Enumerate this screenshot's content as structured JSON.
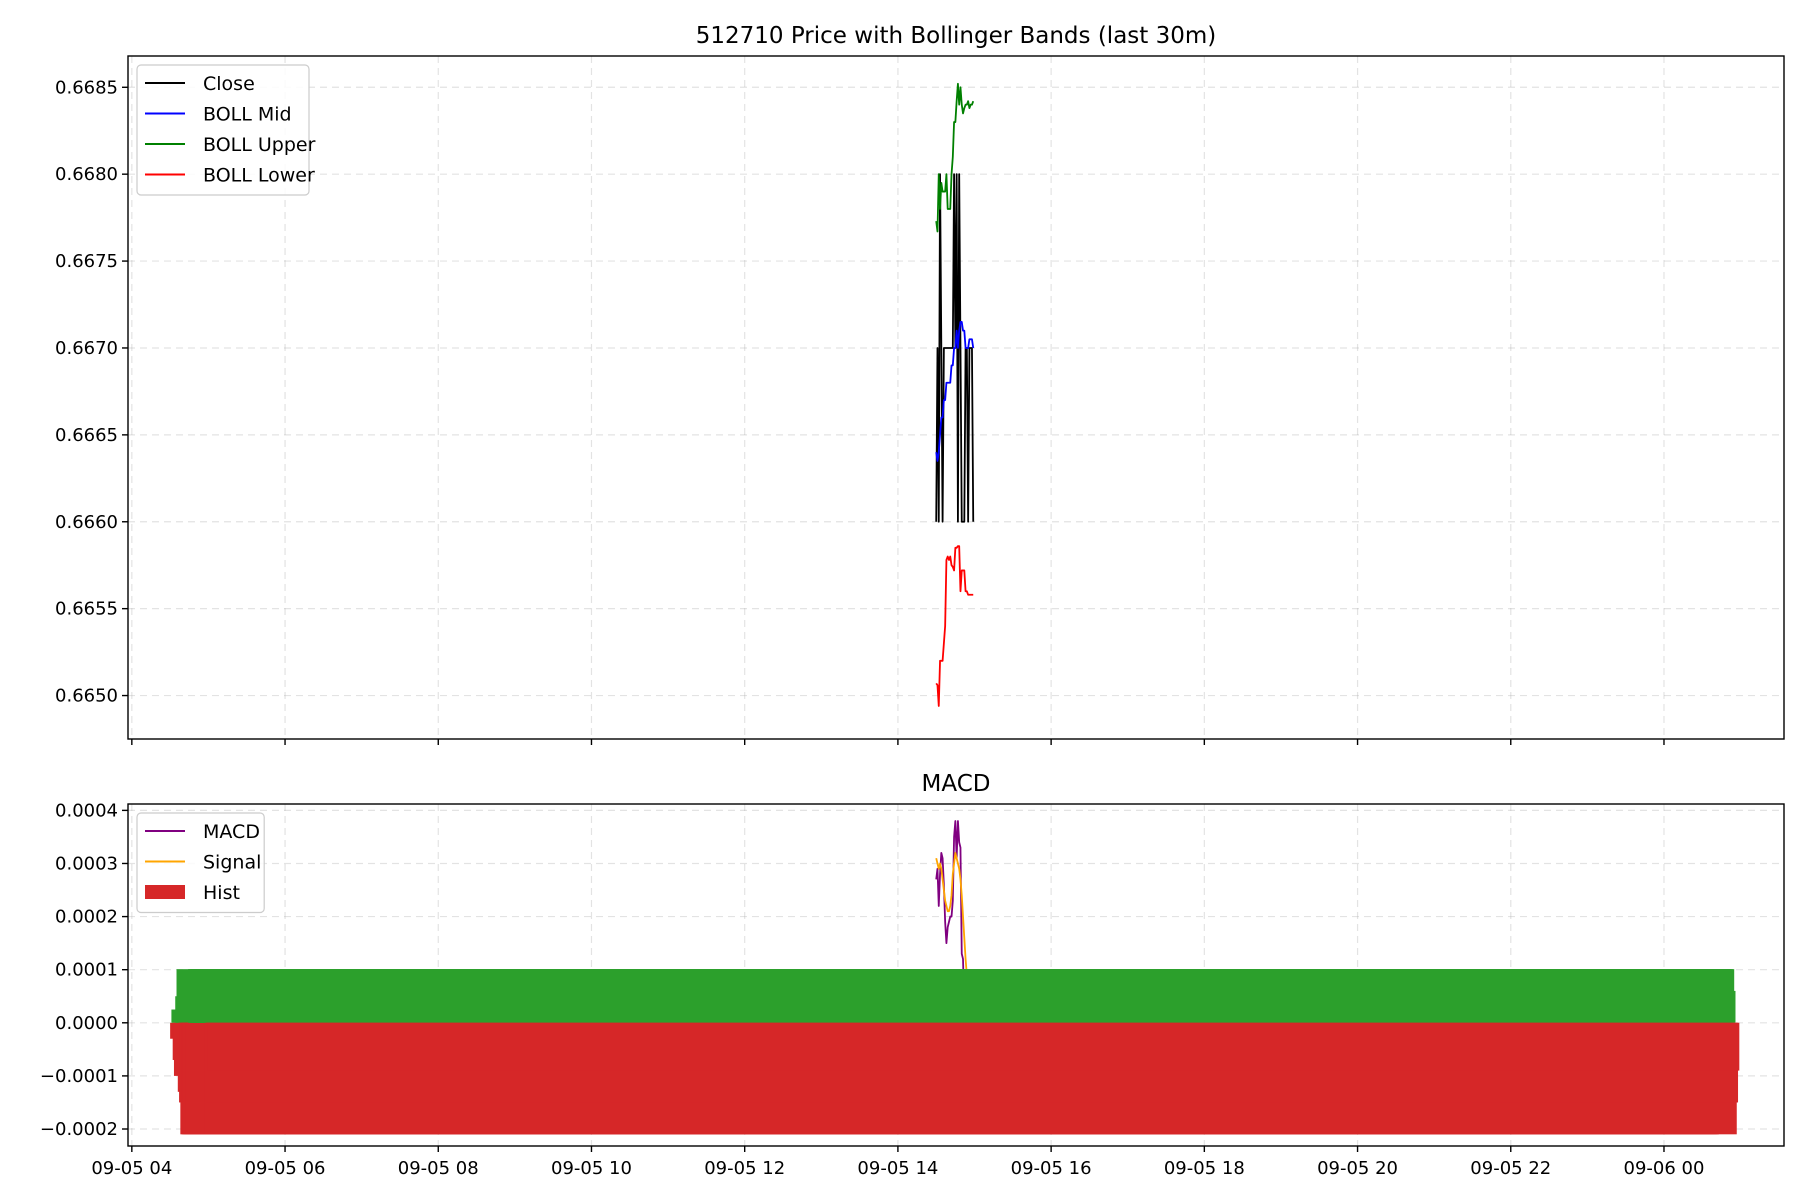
{
  "chart_data": [
    {
      "type": "line",
      "title": "512710 Price with Bollinger Bands (last 30m)",
      "xlabel": "",
      "ylabel": "",
      "x_ticks": [
        "09-05 04",
        "09-05 06",
        "09-05 08",
        "09-05 10",
        "09-05 12",
        "09-05 14",
        "09-05 16",
        "09-05 18",
        "09-05 20",
        "09-05 22",
        "09-06 00"
      ],
      "x_tick_labels_shown": false,
      "xlim": [
        "09-05 03:57",
        "09-06 01:34"
      ],
      "ylim": [
        0.66475,
        0.66868
      ],
      "y_ticks": [
        "0.6650",
        "0.6655",
        "0.6660",
        "0.6665",
        "0.6670",
        "0.6675",
        "0.6680",
        "0.6685"
      ],
      "grid": true,
      "legend_position": "upper-left",
      "legend": [
        "Close",
        "BOLL Mid",
        "BOLL Upper",
        "BOLL Lower"
      ],
      "series": [
        {
          "name": "Close",
          "color": "#000000",
          "x": [
            "09-05 14:30",
            "09-05 14:31",
            "09-05 14:32",
            "09-05 14:33",
            "09-05 14:34",
            "09-05 14:35",
            "09-05 14:36",
            "09-05 14:37",
            "09-05 14:38",
            "09-05 14:39",
            "09-05 14:40",
            "09-05 14:41",
            "09-05 14:42",
            "09-05 14:43",
            "09-05 14:44",
            "09-05 14:45",
            "09-05 14:46",
            "09-05 14:47",
            "09-05 14:48",
            "09-05 14:49",
            "09-05 14:50",
            "09-05 14:51",
            "09-05 14:52",
            "09-05 14:53",
            "09-05 14:54",
            "09-05 14:55",
            "09-05 14:56",
            "09-05 14:57",
            "09-05 14:58",
            "09-05 14:59"
          ],
          "values": [
            0.666,
            0.667,
            0.666,
            0.668,
            0.667,
            0.666,
            0.667,
            0.667,
            0.667,
            0.667,
            0.667,
            0.667,
            0.667,
            0.667,
            0.668,
            0.667,
            0.668,
            0.666,
            0.668,
            0.667,
            0.666,
            0.666,
            0.666,
            0.667,
            0.667,
            0.666,
            0.667,
            0.667,
            0.667,
            0.666
          ]
        },
        {
          "name": "BOLL Mid",
          "color": "#0000ff",
          "x": [
            "09-05 14:30",
            "09-05 14:31",
            "09-05 14:32",
            "09-05 14:33",
            "09-05 14:34",
            "09-05 14:35",
            "09-05 14:36",
            "09-05 14:37",
            "09-05 14:38",
            "09-05 14:39",
            "09-05 14:40",
            "09-05 14:41",
            "09-05 14:42",
            "09-05 14:43",
            "09-05 14:44",
            "09-05 14:45",
            "09-05 14:46",
            "09-05 14:47",
            "09-05 14:48",
            "09-05 14:49",
            "09-05 14:50",
            "09-05 14:51",
            "09-05 14:52",
            "09-05 14:53",
            "09-05 14:54",
            "09-05 14:55",
            "09-05 14:56",
            "09-05 14:57",
            "09-05 14:58",
            "09-05 14:59"
          ],
          "values": [
            0.6664,
            0.66635,
            0.6664,
            0.6665,
            0.6666,
            0.6666,
            0.6667,
            0.6667,
            0.6668,
            0.6668,
            0.6668,
            0.6668,
            0.6669,
            0.6669,
            0.667,
            0.667,
            0.6671,
            0.667,
            0.6671,
            0.66715,
            0.66715,
            0.6671,
            0.6671,
            0.667,
            0.667,
            0.667,
            0.66705,
            0.66705,
            0.66705,
            0.667
          ]
        },
        {
          "name": "BOLL Upper",
          "color": "#008000",
          "x": [
            "09-05 14:30",
            "09-05 14:31",
            "09-05 14:32",
            "09-05 14:33",
            "09-05 14:34",
            "09-05 14:35",
            "09-05 14:36",
            "09-05 14:37",
            "09-05 14:38",
            "09-05 14:39",
            "09-05 14:40",
            "09-05 14:41",
            "09-05 14:42",
            "09-05 14:43",
            "09-05 14:44",
            "09-05 14:45",
            "09-05 14:46",
            "09-05 14:47",
            "09-05 14:48",
            "09-05 14:49",
            "09-05 14:50",
            "09-05 14:51",
            "09-05 14:52",
            "09-05 14:53",
            "09-05 14:54",
            "09-05 14:55",
            "09-05 14:56",
            "09-05 14:57",
            "09-05 14:58",
            "09-05 14:59"
          ],
          "values": [
            0.66773,
            0.66767,
            0.668,
            0.6678,
            0.66795,
            0.6679,
            0.6679,
            0.6679,
            0.668,
            0.6678,
            0.6678,
            0.6678,
            0.668,
            0.6681,
            0.6683,
            0.6683,
            0.66842,
            0.66852,
            0.6684,
            0.6685,
            0.6684,
            0.66835,
            0.66838,
            0.6684,
            0.6684,
            0.66842,
            0.66838,
            0.6684,
            0.6684,
            0.66842
          ]
        },
        {
          "name": "BOLL Lower",
          "color": "#ff0000",
          "x": [
            "09-05 14:30",
            "09-05 14:31",
            "09-05 14:32",
            "09-05 14:33",
            "09-05 14:34",
            "09-05 14:35",
            "09-05 14:36",
            "09-05 14:37",
            "09-05 14:38",
            "09-05 14:39",
            "09-05 14:40",
            "09-05 14:41",
            "09-05 14:42",
            "09-05 14:43",
            "09-05 14:44",
            "09-05 14:45",
            "09-05 14:46",
            "09-05 14:47",
            "09-05 14:48",
            "09-05 14:49",
            "09-05 14:50",
            "09-05 14:51",
            "09-05 14:52",
            "09-05 14:53",
            "09-05 14:54",
            "09-05 14:55",
            "09-05 14:56",
            "09-05 14:57",
            "09-05 14:58",
            "09-05 14:59"
          ],
          "values": [
            0.66507,
            0.66506,
            0.66494,
            0.6652,
            0.6652,
            0.6652,
            0.6653,
            0.6654,
            0.66578,
            0.6658,
            0.66578,
            0.6658,
            0.66575,
            0.66574,
            0.66572,
            0.66585,
            0.66585,
            0.66586,
            0.66586,
            0.6656,
            0.66572,
            0.66572,
            0.66572,
            0.6656,
            0.6656,
            0.66558,
            0.66558,
            0.66558,
            0.66558,
            0.66558
          ]
        }
      ]
    },
    {
      "type": "line",
      "title": "MACD",
      "xlabel": "",
      "ylabel": "",
      "x_ticks": [
        "09-05 04",
        "09-05 06",
        "09-05 08",
        "09-05 10",
        "09-05 12",
        "09-05 14",
        "09-05 16",
        "09-05 18",
        "09-05 20",
        "09-05 22",
        "09-06 00"
      ],
      "xlim": [
        "09-05 03:57",
        "09-06 01:34"
      ],
      "ylim": [
        -0.000232,
        0.000412
      ],
      "y_ticks": [
        "−0.0002",
        "−0.0001",
        "0.0000",
        "0.0001",
        "0.0002",
        "0.0003",
        "0.0004"
      ],
      "grid": true,
      "legend_position": "upper-left",
      "legend": [
        "MACD",
        "Signal",
        "Hist"
      ],
      "series": [
        {
          "name": "MACD",
          "color": "#800080",
          "x": [
            "09-05 14:30",
            "09-05 14:31",
            "09-05 14:32",
            "09-05 14:33",
            "09-05 14:34",
            "09-05 14:35",
            "09-05 14:36",
            "09-05 14:37",
            "09-05 14:38",
            "09-05 14:39",
            "09-05 14:40",
            "09-05 14:41",
            "09-05 14:42",
            "09-05 14:43",
            "09-05 14:44",
            "09-05 14:45",
            "09-05 14:46",
            "09-05 14:47",
            "09-05 14:48",
            "09-05 14:49",
            "09-05 14:50",
            "09-05 14:51",
            "09-05 14:52",
            "09-05 14:53",
            "09-05 14:54",
            "09-05 14:55",
            "09-05 14:56",
            "09-05 14:57",
            "09-05 14:58",
            "09-05 14:59"
          ],
          "values": [
            0.00027,
            0.00029,
            0.00022,
            0.00028,
            0.00032,
            0.00031,
            0.00026,
            0.00019,
            0.00015,
            0.00018,
            0.00019,
            0.0002,
            0.0002,
            0.00023,
            0.00035,
            0.00038,
            0.00031,
            0.00038,
            0.00034,
            0.00033,
            0.00013,
            0.00012,
            2e-05,
            -3e-05,
            -5e-05,
            -8e-05,
            -0.00012,
            -9e-05,
            -3e-05,
            -9e-05
          ]
        },
        {
          "name": "Signal",
          "color": "#ffa500",
          "x": [
            "09-05 14:30",
            "09-05 14:31",
            "09-05 14:32",
            "09-05 14:33",
            "09-05 14:34",
            "09-05 14:35",
            "09-05 14:36",
            "09-05 14:37",
            "09-05 14:38",
            "09-05 14:39",
            "09-05 14:40",
            "09-05 14:41",
            "09-05 14:42",
            "09-05 14:43",
            "09-05 14:44",
            "09-05 14:45",
            "09-05 14:46",
            "09-05 14:47",
            "09-05 14:48",
            "09-05 14:49",
            "09-05 14:50",
            "09-05 14:51",
            "09-05 14:52",
            "09-05 14:53",
            "09-05 14:54",
            "09-05 14:55",
            "09-05 14:56",
            "09-05 14:57",
            "09-05 14:58",
            "09-05 14:59"
          ],
          "values": [
            0.00031,
            0.0003,
            0.00029,
            0.0003,
            0.00029,
            0.00027,
            0.00025,
            0.00023,
            0.00022,
            0.00021,
            0.00021,
            0.00022,
            0.00024,
            0.00028,
            0.0003,
            0.00032,
            0.00031,
            0.0003,
            0.00029,
            0.00027,
            0.00024,
            0.0002,
            0.00016,
            0.00012,
            9e-05,
            6e-05,
            4e-05,
            2e-05,
            1e-05,
            0.0
          ]
        },
        {
          "name": "Hist",
          "type": "bar",
          "positive_color": "#2ca02c",
          "negative_color": "#d62728",
          "x": [
            "09-05 14:30",
            "09-05 14:31",
            "09-05 14:32",
            "09-05 14:33",
            "09-05 14:34",
            "09-05 14:35",
            "09-05 14:36",
            "09-05 14:37",
            "09-05 14:38",
            "09-05 14:39",
            "09-05 14:40",
            "09-05 14:41",
            "09-05 14:42",
            "09-05 14:43",
            "09-05 14:44",
            "09-05 14:45",
            "09-05 14:46",
            "09-05 14:47",
            "09-05 14:48",
            "09-05 14:49",
            "09-05 14:50",
            "09-05 14:51",
            "09-05 14:52",
            "09-05 14:53",
            "09-05 14:54",
            "09-05 14:55",
            "09-05 14:56",
            "09-05 14:57",
            "09-05 14:58",
            "09-05 14:59"
          ],
          "values": [
            -3e-05,
            2.5e-05,
            -7e-05,
            -0.0001,
            5e-05,
            0.000101,
            -0.00013,
            -0.00015,
            -0.00021,
            -0.00021,
            -0.00021,
            -0.00021,
            -0.00021,
            -0.00021,
            0.000101,
            0.000101,
            0.000101,
            0.000101,
            0.000101,
            0.000101,
            0.000101,
            0.000101,
            0.000101,
            0.000101,
            0.000101,
            0.000101,
            6e-05,
            -0.00021,
            -0.00015,
            -9e-05
          ],
          "bar_width_minutes": 1200
        }
      ]
    }
  ]
}
